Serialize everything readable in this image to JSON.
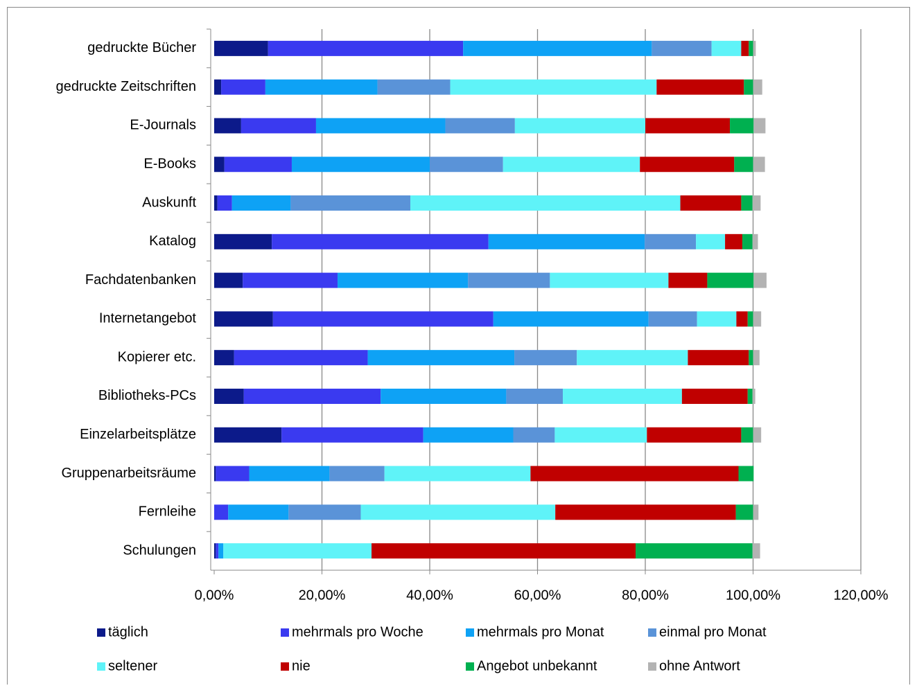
{
  "chart_data": {
    "type": "stacked_barh",
    "categories": [
      "gedruckte Bücher",
      "gedruckte Zeitschriften",
      "E-Journals",
      "E-Books",
      "Auskunft",
      "Katalog",
      "Fachdatenbanken",
      "Internetangebot",
      "Kopierer etc.",
      "Bibliotheks-PCs",
      "Einzelarbeitsplätze",
      "Gruppenarbeitsräume",
      "Fernleihe",
      "Schulungen"
    ],
    "series": [
      {
        "name": "täglich",
        "color": "#0c1a8a",
        "values": [
          10.0,
          1.3,
          5.0,
          1.9,
          0.6,
          10.7,
          5.3,
          10.9,
          3.7,
          5.5,
          12.5,
          0.3,
          0,
          0.3
        ]
      },
      {
        "name": "mehrmals pro Woche",
        "color": "#3a3af0",
        "values": [
          36.2,
          8.2,
          13.9,
          12.5,
          2.7,
          40.2,
          17.6,
          40.9,
          24.8,
          25.4,
          26.3,
          6.2,
          2.6,
          0.5
        ]
      },
      {
        "name": "mehrmals pro Monat",
        "color": "#0ea2f5",
        "values": [
          35.0,
          20.8,
          24.0,
          25.6,
          10.9,
          29.0,
          24.2,
          28.8,
          27.2,
          23.3,
          16.7,
          14.9,
          11.2,
          0.9
        ]
      },
      {
        "name": "einmal pro Monat",
        "color": "#5a93d8",
        "values": [
          11.1,
          13.5,
          12.9,
          13.6,
          22.2,
          9.5,
          15.2,
          9.0,
          11.6,
          10.5,
          7.7,
          10.2,
          13.4,
          0
        ]
      },
      {
        "name": "seltener",
        "color": "#5ff3f8",
        "values": [
          5.5,
          38.3,
          24.2,
          25.4,
          50.1,
          5.4,
          22.0,
          7.3,
          20.6,
          22.1,
          17.1,
          27.1,
          36.1,
          27.5
        ]
      },
      {
        "name": "nie",
        "color": "#c00000",
        "values": [
          1.4,
          16.2,
          15.7,
          17.5,
          11.3,
          3.2,
          7.2,
          2.1,
          11.3,
          12.2,
          17.5,
          38.6,
          33.5,
          49.0
        ]
      },
      {
        "name": "Angebot unbekannt",
        "color": "#00b050",
        "values": [
          0.8,
          1.7,
          4.4,
          3.5,
          2.1,
          1.9,
          8.6,
          1.0,
          0.8,
          0.9,
          2.2,
          2.8,
          3.2,
          21.7
        ]
      },
      {
        "name": "ohne Antwort",
        "color": "#b3b3b3",
        "values": [
          0.5,
          1.7,
          2.2,
          2.2,
          1.5,
          1.0,
          2.4,
          1.5,
          1.2,
          0.5,
          1.5,
          0,
          1.0,
          1.4
        ]
      }
    ],
    "xlim": [
      0,
      120
    ],
    "xticks": [
      {
        "value": 0,
        "label": "0,00%"
      },
      {
        "value": 20,
        "label": "20,00%"
      },
      {
        "value": 40,
        "label": "40,00%"
      },
      {
        "value": 60,
        "label": "60,00%"
      },
      {
        "value": 80,
        "label": "80,00%"
      },
      {
        "value": 100,
        "label": "100,00%"
      },
      {
        "value": 120,
        "label": "120,00%"
      }
    ],
    "grid": true,
    "legend": "bottom"
  }
}
